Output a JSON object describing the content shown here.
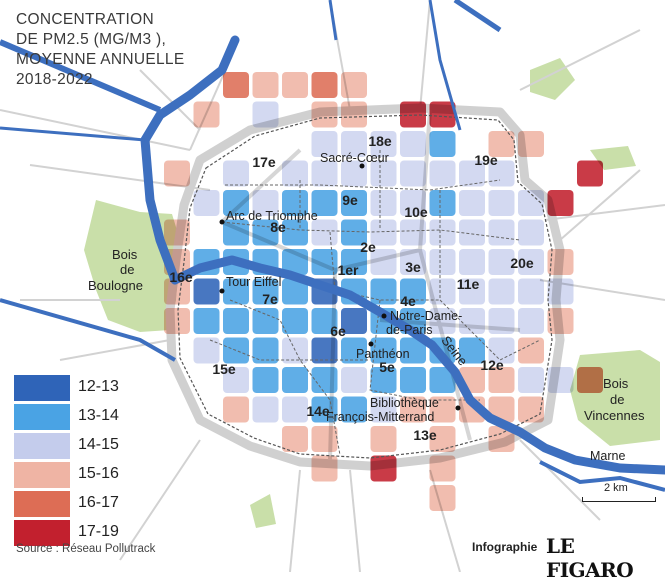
{
  "title_lines": [
    "CONCENTRATION",
    "DE PM2.5 (MG/M3 ),",
    "MOYENNE ANNUELLE",
    "2018-2022"
  ],
  "legend": [
    {
      "label": "12-13",
      "color": "#2f64b8"
    },
    {
      "label": "13-14",
      "color": "#4aa3e4"
    },
    {
      "label": "14-15",
      "color": "#c4ccec"
    },
    {
      "label": "15-16",
      "color": "#efb4a4"
    },
    {
      "label": "16-17",
      "color": "#dd6d55"
    },
    {
      "label": "17-19",
      "color": "#c2202e"
    }
  ],
  "arrondissements": [
    "1er",
    "2e",
    "3e",
    "4e",
    "5e",
    "6e",
    "7e",
    "8e",
    "9e",
    "10e",
    "11e",
    "12e",
    "13e",
    "14e",
    "15e",
    "16e",
    "17e",
    "18e",
    "19e",
    "20e"
  ],
  "landmarks": [
    "Sacré-Cœur",
    "Arc de Triomphe",
    "Tour Eiffel",
    "Notre-Dame-de-Paris",
    "Panthéon",
    "Bibliothèque François-Mitterrand"
  ],
  "parks": {
    "west": "Bois de Boulogne",
    "east": "Bois de Vincennes"
  },
  "rivers": {
    "seine": "Seine",
    "marne": "Marne"
  },
  "scale": "2 km",
  "source": "Source : Réseau Pollutrack",
  "credit_prefix": "Infographie",
  "credit_brand": "LE FIGARO",
  "grid_levels": [
    "....43343........",
    "...3.2.33.55.....",
    ".......22221.33..",
    "..3.2.22222222..5",
    "...2121112212225.",
    "..3.11121222222..",
    "..31111112222223.",
    "..30111011122222.",
    "..31111101122223.",
    "...211201111123..",
    "....2111211133224",
    "....32211233333..",
    "......33.3.3.3...",
    ".......3.5.3.....",
    "...........3....."
  ]
}
